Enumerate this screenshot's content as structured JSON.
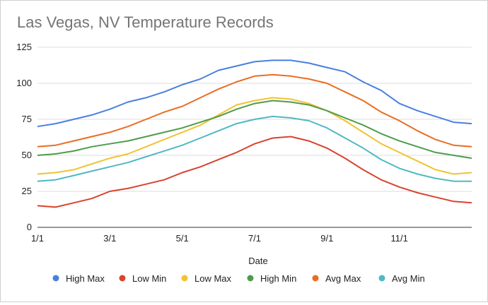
{
  "chart_data": {
    "type": "line",
    "title": "Las Vegas, NV Temperature Records",
    "xlabel": "Date",
    "ylabel": "",
    "ylim": [
      0,
      125
    ],
    "yticks": [
      0,
      25,
      50,
      75,
      100,
      125
    ],
    "x_tick_labels": [
      "1/1",
      "3/1",
      "5/1",
      "7/1",
      "9/1",
      "11/1"
    ],
    "grid": true,
    "legend_position": "bottom",
    "x": [
      "1/1",
      "1/15",
      "2/1",
      "2/15",
      "3/1",
      "3/15",
      "4/1",
      "4/15",
      "5/1",
      "5/15",
      "6/1",
      "6/15",
      "7/1",
      "7/15",
      "8/1",
      "8/15",
      "9/1",
      "9/15",
      "10/1",
      "10/15",
      "11/1",
      "11/15",
      "12/1",
      "12/15",
      "12/31"
    ],
    "series": [
      {
        "name": "High Max",
        "color": "#4a7fe0",
        "values": [
          70,
          72,
          75,
          78,
          82,
          87,
          90,
          94,
          99,
          103,
          109,
          112,
          115,
          116,
          116,
          114,
          111,
          108,
          101,
          95,
          86,
          81,
          77,
          73,
          72
        ]
      },
      {
        "name": "Low Min",
        "color": "#d9432f",
        "values": [
          15,
          14,
          17,
          20,
          25,
          27,
          30,
          33,
          38,
          42,
          47,
          52,
          58,
          62,
          63,
          60,
          55,
          48,
          40,
          33,
          28,
          24,
          21,
          18,
          17
        ]
      },
      {
        "name": "Low Max",
        "color": "#f2c232",
        "values": [
          37,
          38,
          40,
          44,
          48,
          51,
          56,
          61,
          66,
          71,
          78,
          85,
          88,
          90,
          89,
          86,
          81,
          74,
          66,
          58,
          52,
          46,
          40,
          37,
          38
        ]
      },
      {
        "name": "High Min",
        "color": "#4e9c48",
        "values": [
          50,
          51,
          53,
          56,
          58,
          60,
          63,
          66,
          69,
          73,
          77,
          82,
          86,
          88,
          87,
          85,
          81,
          76,
          71,
          65,
          60,
          56,
          52,
          50,
          48
        ]
      },
      {
        "name": "Avg Max",
        "color": "#ea6c22",
        "values": [
          56,
          57,
          60,
          63,
          66,
          70,
          75,
          80,
          84,
          90,
          96,
          101,
          105,
          106,
          105,
          103,
          100,
          94,
          88,
          80,
          74,
          67,
          61,
          57,
          56
        ]
      },
      {
        "name": "Avg Min",
        "color": "#4fb8c4",
        "values": [
          32,
          33,
          36,
          39,
          42,
          45,
          49,
          53,
          57,
          62,
          67,
          72,
          75,
          77,
          76,
          74,
          69,
          62,
          55,
          47,
          41,
          37,
          34,
          32,
          32
        ]
      }
    ]
  }
}
